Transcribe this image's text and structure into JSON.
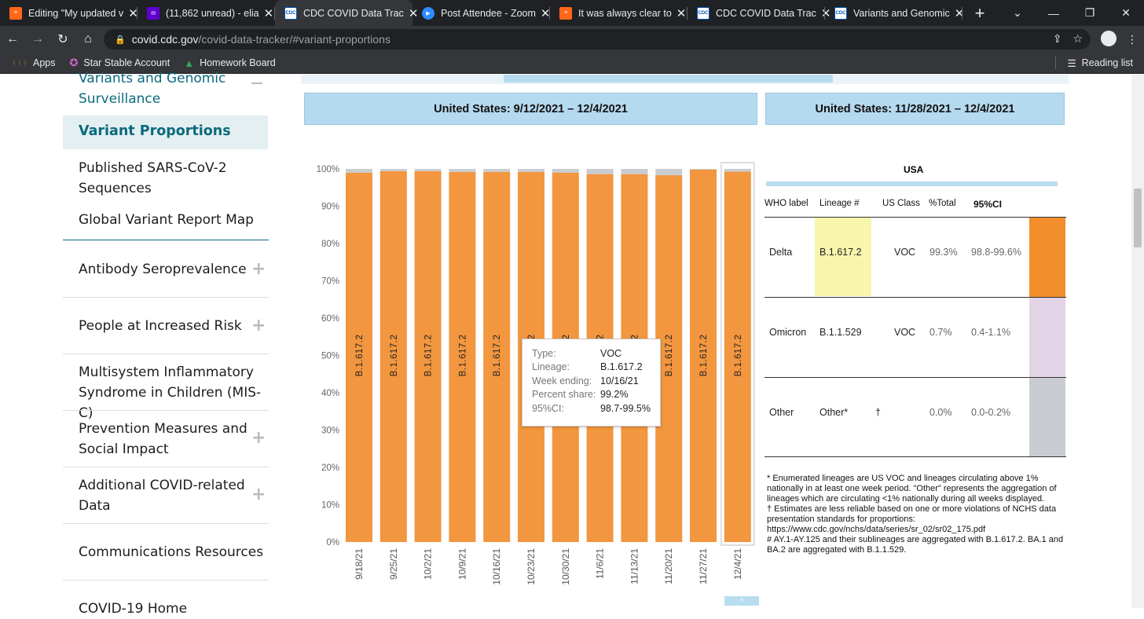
{
  "browser": {
    "tabs": [
      {
        "title": "Editing \"My updated v",
        "icon": "substack-icon",
        "kind": "sub"
      },
      {
        "title": "(11,862 unread) - elia",
        "icon": "yahoo-mail-icon",
        "kind": "mail"
      },
      {
        "title": "CDC COVID Data Trac",
        "icon": "cdc-icon",
        "kind": "cdc",
        "active": true
      },
      {
        "title": "Post Attendee - Zoom",
        "icon": "zoom-icon",
        "kind": "zoom"
      },
      {
        "title": "It was always clear to",
        "icon": "substack-icon",
        "kind": "sub"
      },
      {
        "title": "CDC COVID Data Trac",
        "icon": "cdc-icon",
        "kind": "cdc"
      },
      {
        "title": "Variants and Genomic",
        "icon": "cdc-icon",
        "kind": "cdc"
      }
    ],
    "cdc_fav_text": "CDC",
    "url_host": "covid.cdc.gov",
    "url_path": "/covid-data-tracker/#variant-proportions",
    "bookmarks": [
      {
        "label": "Apps",
        "icon": "apps-grid-icon"
      },
      {
        "label": "Star Stable Account",
        "icon": "star-stable-icon"
      },
      {
        "label": "Homework Board",
        "icon": "google-drive-icon"
      }
    ],
    "reading_list": "Reading list"
  },
  "sidebar": {
    "section_title_l1": "Variants and Genomic",
    "section_title_l2": "Surveillance",
    "active_item": "Variant Proportions",
    "sub_items": [
      {
        "l1": "Published SARS-CoV-2",
        "l2": "Sequences"
      },
      {
        "l1": "Global Variant Report Map",
        "l2": ""
      }
    ],
    "items": [
      {
        "l1": "Antibody Seroprevalence",
        "l2": "",
        "expand": true
      },
      {
        "l1": "People at Increased Risk",
        "l2": "",
        "expand": true
      },
      {
        "l1": "Multisystem Inflammatory",
        "l2": "Syndrome in Children (MIS-C)",
        "expand": false
      },
      {
        "l1": "Prevention Measures and",
        "l2": "Social Impact",
        "expand": true
      },
      {
        "l1": "Additional COVID-related",
        "l2": "Data",
        "expand": true
      },
      {
        "l1": "Communications Resources",
        "l2": "",
        "expand": false
      },
      {
        "l1": "COVID-19 Home",
        "l2": "",
        "expand": false
      }
    ]
  },
  "dashboard": {
    "left_header": "United States: 9/12/2021 – 12/4/2021",
    "right_header": "United States: 11/28/2021 – 12/4/2021",
    "region": "USA",
    "table_headers": [
      "WHO label",
      "Lineage #",
      "US Class",
      "%Total",
      "95%CI"
    ],
    "rows": [
      {
        "who": "Delta",
        "lineage": "B.1.617.2",
        "class": "VOC",
        "total": "99.3%",
        "ci": "98.8-99.6%",
        "color": "#f28e2b"
      },
      {
        "who": "Omicron",
        "lineage": "B.1.1.529",
        "class": "VOC",
        "total": "0.7%",
        "ci": "0.4-1.1%",
        "color": "#e2d3e6"
      },
      {
        "who": "Other",
        "lineage": "Other*",
        "class": "†",
        "total": "0.0%",
        "ci": "0.0-0.2%",
        "color": "#c9cdd1"
      }
    ],
    "notes": [
      "*      Enumerated lineages are US VOC and lineages circulating above 1% nationally in at least one week period. \"Other\" represents the aggregation of lineages which are circulating <1% nationally during all weeks displayed.",
      "†      Estimates are less reliable based on one or more violations of NCHS data presentation standards for proportions:",
      "https://www.cdc.gov/nchs/data/series/sr_02/sr02_175.pdf",
      "#      AY.1-AY.125 and their sublineages are aggregated with B.1.617.2. BA.1 and BA.2 are aggregated with B.1.1.529."
    ],
    "tooltip": [
      {
        "k": "Type:",
        "v": "VOC"
      },
      {
        "k": "Lineage:",
        "v": "B.1.617.2"
      },
      {
        "k": "Week ending:",
        "v": "10/16/21"
      },
      {
        "k": "Percent share:",
        "v": "99.2%"
      },
      {
        "k": "95%CI:",
        "v": "98.7-99.5%"
      }
    ]
  },
  "chart_data": {
    "type": "bar",
    "stacked": true,
    "categories": [
      "9/18/21",
      "9/25/21",
      "10/2/21",
      "10/9/21",
      "10/16/21",
      "10/23/21",
      "10/30/21",
      "11/6/21",
      "11/13/21",
      "11/20/21",
      "11/27/21",
      "12/4/21"
    ],
    "series": [
      {
        "name": "B.1.617.2",
        "color": "#f2963f",
        "values": [
          99.0,
          99.4,
          99.4,
          99.2,
          99.2,
          99.2,
          99.0,
          98.6,
          98.6,
          98.3,
          99.8,
          99.3
        ]
      },
      {
        "name": "Other",
        "color": "#c9cdd1",
        "values": [
          1.0,
          0.6,
          0.6,
          0.8,
          0.8,
          0.8,
          1.0,
          1.4,
          1.4,
          1.7,
          0.2,
          0.7
        ]
      }
    ],
    "bar_label": "B.1.617.2",
    "yticks": [
      "0%",
      "10%",
      "20%",
      "30%",
      "40%",
      "50%",
      "60%",
      "70%",
      "80%",
      "90%",
      "100%"
    ],
    "ylim": [
      0,
      100
    ],
    "highlight_index": 11
  }
}
